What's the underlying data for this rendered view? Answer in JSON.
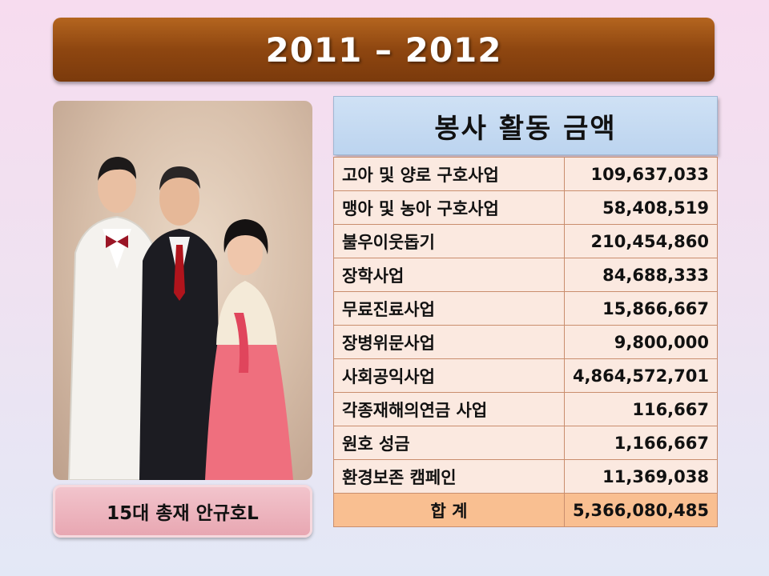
{
  "banner": {
    "title": "2011 – 2012"
  },
  "photo": {
    "alt": ""
  },
  "caption": {
    "text": "15대 총재 안규호L"
  },
  "table": {
    "header": "봉사 활동 금액",
    "rows": [
      {
        "name": "고아 및 양로 구호사업",
        "amount": "109,637,033"
      },
      {
        "name": "맹아 및 농아 구호사업",
        "amount": "58,408,519"
      },
      {
        "name": "불우이웃돕기",
        "amount": "210,454,860"
      },
      {
        "name": "장학사업",
        "amount": "84,688,333"
      },
      {
        "name": "무료진료사업",
        "amount": "15,866,667"
      },
      {
        "name": "장병위문사업",
        "amount": "9,800,000"
      },
      {
        "name": "사회공익사업",
        "amount": "4,864,572,701"
      },
      {
        "name": "각종재해의연금 사업",
        "amount": "116,667"
      },
      {
        "name": "원호 성금",
        "amount": "1,166,667"
      },
      {
        "name": "환경보존 캠페인",
        "amount": "11,369,038"
      }
    ],
    "total": {
      "label": "합 계",
      "amount": "5,366,080,485"
    }
  }
}
